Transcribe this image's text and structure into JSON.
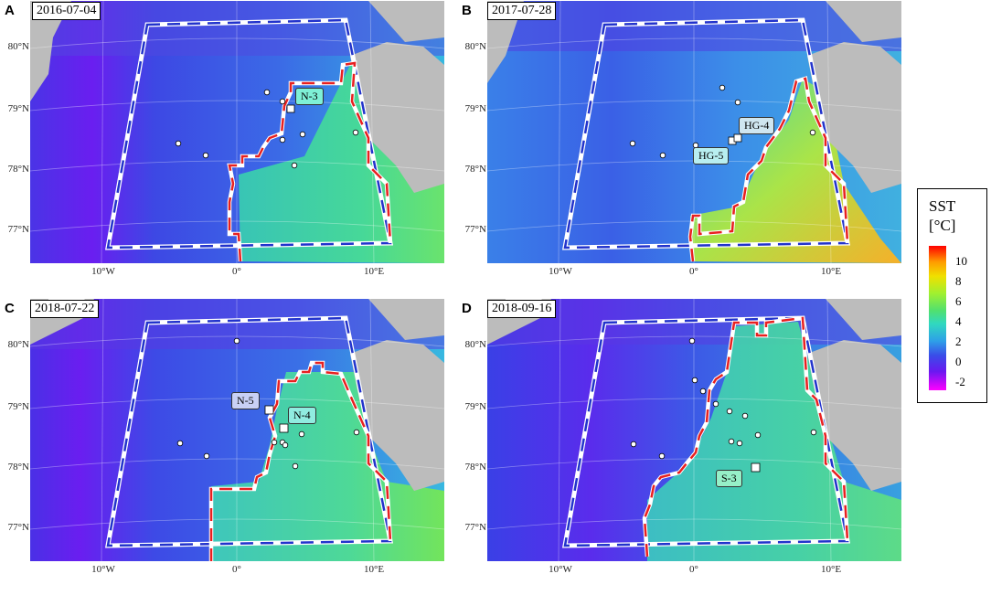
{
  "panels": [
    {
      "letter": "A",
      "date": "2016-07-04",
      "stations": [
        {
          "name": "N-3",
          "bg": "#7ef0d6"
        }
      ]
    },
    {
      "letter": "B",
      "date": "2017-07-28",
      "stations": [
        {
          "name": "HG-4",
          "bg": "#cfe6f0"
        },
        {
          "name": "HG-5",
          "bg": "#b8eef0"
        }
      ]
    },
    {
      "letter": "C",
      "date": "2018-07-22",
      "stations": [
        {
          "name": "N-5",
          "bg": "#c8d0f5"
        },
        {
          "name": "N-4",
          "bg": "#90ece0"
        }
      ]
    },
    {
      "letter": "D",
      "date": "2018-09-16",
      "stations": [
        {
          "name": "S-3",
          "bg": "#96f0c8"
        }
      ]
    }
  ],
  "lat_labels": [
    "80°N",
    "79°N",
    "78°N",
    "77°N"
  ],
  "lon_labels": [
    "10°W",
    "0°",
    "10°E"
  ],
  "legend": {
    "title_line1": "SST",
    "title_line2": "[°C]",
    "ticks": [
      "10",
      "8",
      "6",
      "4",
      "2",
      "0",
      "-2"
    ]
  },
  "colors": {
    "land": "#bcbcbc",
    "boundary_blue": "#2233cc",
    "boundary_red": "#e82020",
    "frame_white": "#ffffff"
  }
}
